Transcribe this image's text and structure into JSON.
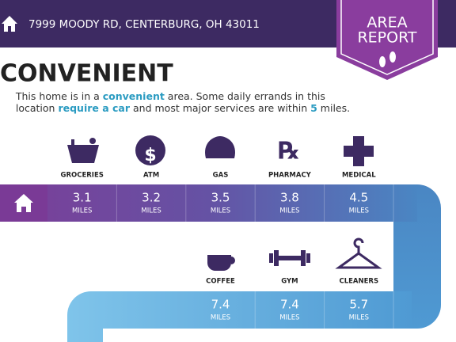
{
  "header": {
    "address": "7999 MOODY RD, CENTERBURG, OH 43011"
  },
  "badge": {
    "line1": "AREA",
    "line2": "REPORT"
  },
  "title": "CONVENIENT",
  "description": {
    "line1": [
      "This home is in a ",
      "convenient",
      " area. Some daily errands in this"
    ],
    "line2": [
      "location ",
      "require a car",
      " and most major services are within ",
      "5",
      " miles."
    ]
  },
  "row1": [
    {
      "label": "GROCERIES",
      "distance": 3.1,
      "unit": "MILES"
    },
    {
      "label": "ATM",
      "distance": 3.2,
      "unit": "MILES"
    },
    {
      "label": "GAS",
      "distance": 3.5,
      "unit": "MILES"
    },
    {
      "label": "PHARMACY",
      "distance": 3.8,
      "unit": "MILES"
    },
    {
      "label": "MEDICAL",
      "distance": 4.5,
      "unit": "MILES"
    }
  ],
  "row2": [
    {
      "label": "COFFEE",
      "distance": 7.4,
      "unit": "MILES"
    },
    {
      "label": "GYM",
      "distance": 7.4,
      "unit": "MILES"
    },
    {
      "label": "CLEANERS",
      "distance": 5.7,
      "unit": "MILES"
    }
  ]
}
